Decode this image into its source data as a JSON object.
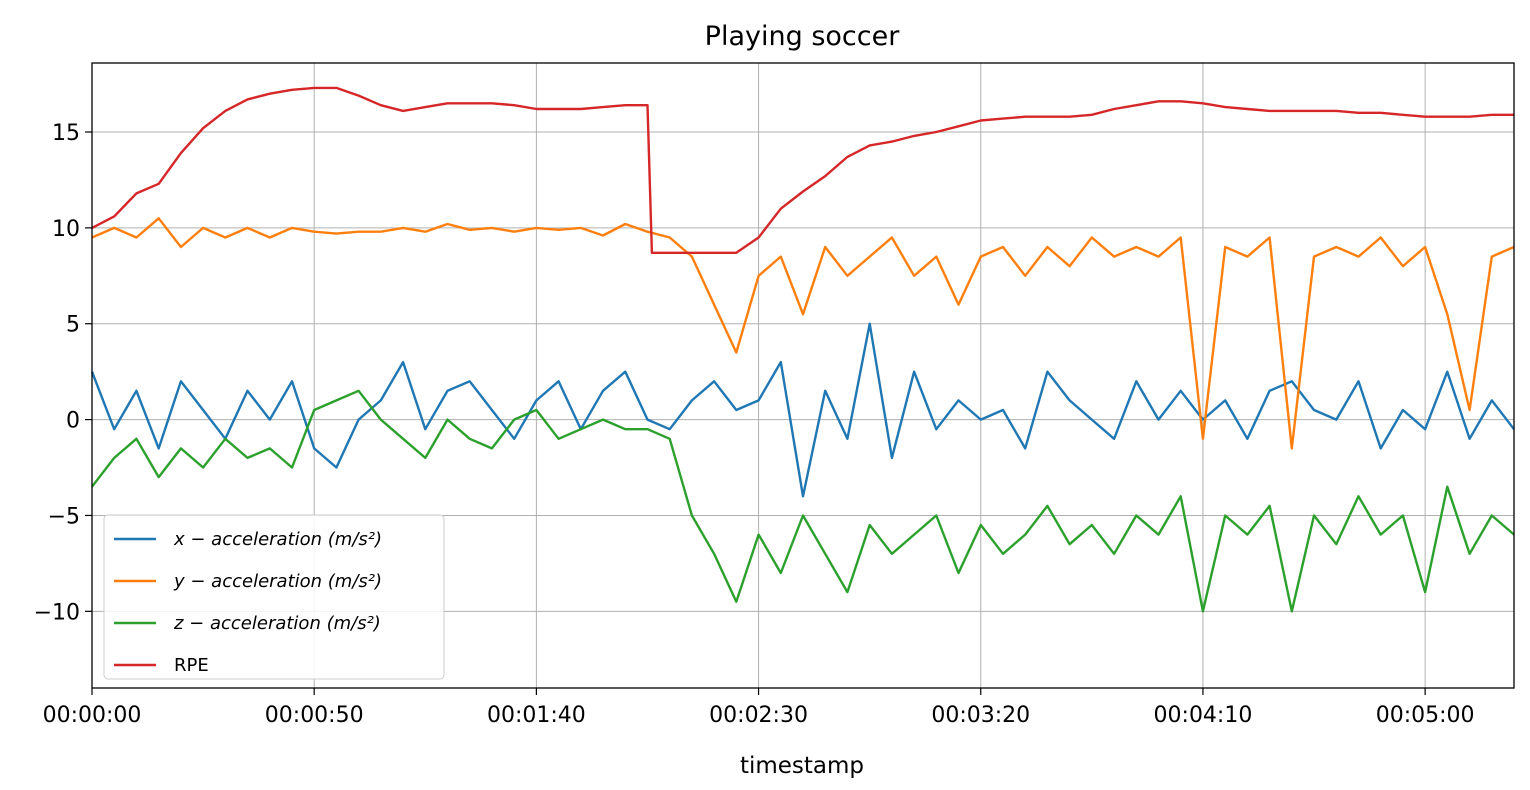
{
  "chart_data": {
    "type": "line",
    "title": "Playing soccer",
    "xlabel": "timestamp",
    "ylabel": "",
    "xlim": [
      0,
      320
    ],
    "ylim": [
      -14,
      18.6
    ],
    "x_ticks": [
      0,
      50,
      100,
      150,
      200,
      250,
      300
    ],
    "x_tick_labels": [
      "00:00:00",
      "00:00:50",
      "00:01:40",
      "00:02:30",
      "00:03:20",
      "00:04:10",
      "00:05:00"
    ],
    "y_ticks": [
      -10,
      -5,
      0,
      5,
      10,
      15
    ],
    "y_tick_labels": [
      "−10",
      "−5",
      "0",
      "5",
      "10",
      "15"
    ],
    "grid": true,
    "legend_position": "lower-left",
    "series": [
      {
        "name": "x − acceleration (m/s²)",
        "color": "#1f77b4",
        "x": [
          0,
          5,
          10,
          15,
          20,
          25,
          30,
          35,
          40,
          45,
          50,
          55,
          60,
          65,
          70,
          75,
          80,
          85,
          90,
          95,
          100,
          105,
          110,
          115,
          120,
          125,
          130,
          135,
          140,
          145,
          150,
          155,
          160,
          165,
          170,
          175,
          180,
          185,
          190,
          195,
          200,
          205,
          210,
          215,
          220,
          225,
          230,
          235,
          240,
          245,
          250,
          255,
          260,
          265,
          270,
          275,
          280,
          285,
          290,
          295,
          300,
          305,
          310,
          315,
          320
        ],
        "values": [
          2.5,
          -0.5,
          1.5,
          -1.5,
          2,
          0.5,
          -1,
          1.5,
          0,
          2,
          -1.5,
          -2.5,
          0,
          1,
          3,
          -0.5,
          1.5,
          2,
          0.5,
          -1,
          1,
          2,
          -0.5,
          1.5,
          2.5,
          0,
          -0.5,
          1,
          2,
          0.5,
          1,
          3,
          -4,
          1.5,
          -1,
          5,
          -2,
          2.5,
          -0.5,
          1,
          0,
          0.5,
          -1.5,
          2.5,
          1,
          0,
          -1,
          2,
          0,
          1.5,
          0,
          1,
          -1,
          1.5,
          2,
          0.5,
          0,
          2,
          -1.5,
          0.5,
          -0.5,
          2.5,
          -1,
          1,
          -0.5
        ]
      },
      {
        "name": "y − acceleration (m/s²)",
        "color": "#ff7f0e",
        "x": [
          0,
          5,
          10,
          15,
          20,
          25,
          30,
          35,
          40,
          45,
          50,
          55,
          60,
          65,
          70,
          75,
          80,
          85,
          90,
          95,
          100,
          105,
          110,
          115,
          120,
          125,
          130,
          135,
          140,
          145,
          150,
          155,
          160,
          165,
          170,
          175,
          180,
          185,
          190,
          195,
          200,
          205,
          210,
          215,
          220,
          225,
          230,
          235,
          240,
          245,
          250,
          255,
          260,
          265,
          270,
          275,
          280,
          285,
          290,
          295,
          300,
          305,
          310,
          315,
          320
        ],
        "values": [
          9.5,
          10,
          9.5,
          10.5,
          9,
          10,
          9.5,
          10,
          9.5,
          10,
          9.8,
          9.7,
          9.8,
          9.8,
          10,
          9.8,
          10.2,
          9.9,
          10,
          9.8,
          10,
          9.9,
          10,
          9.6,
          10.2,
          9.8,
          9.5,
          8.5,
          6,
          3.5,
          7.5,
          8.5,
          5.5,
          9,
          7.5,
          8.5,
          9.5,
          7.5,
          8.5,
          6,
          8.5,
          9,
          7.5,
          9,
          8,
          9.5,
          8.5,
          9,
          8.5,
          9.5,
          -1,
          9,
          8.5,
          9.5,
          -1.5,
          8.5,
          9,
          8.5,
          9.5,
          8,
          9,
          5.5,
          0.5,
          8.5,
          9
        ]
      },
      {
        "name": "z − acceleration (m/s²)",
        "color": "#2ca02c",
        "x": [
          0,
          5,
          10,
          15,
          20,
          25,
          30,
          35,
          40,
          45,
          50,
          55,
          60,
          65,
          70,
          75,
          80,
          85,
          90,
          95,
          100,
          105,
          110,
          115,
          120,
          125,
          130,
          135,
          140,
          145,
          150,
          155,
          160,
          165,
          170,
          175,
          180,
          185,
          190,
          195,
          200,
          205,
          210,
          215,
          220,
          225,
          230,
          235,
          240,
          245,
          250,
          255,
          260,
          265,
          270,
          275,
          280,
          285,
          290,
          295,
          300,
          305,
          310,
          315,
          320
        ],
        "values": [
          -3.5,
          -2,
          -1,
          -3,
          -1.5,
          -2.5,
          -1,
          -2,
          -1.5,
          -2.5,
          0.5,
          1,
          1.5,
          0,
          -1,
          -2,
          0,
          -1,
          -1.5,
          0,
          0.5,
          -1,
          -0.5,
          0,
          -0.5,
          -0.5,
          -1,
          -5,
          -7,
          -9.5,
          -6,
          -8,
          -5,
          -7,
          -9,
          -5.5,
          -7,
          -6,
          -5,
          -8,
          -5.5,
          -7,
          -6,
          -4.5,
          -6.5,
          -5.5,
          -7,
          -5,
          -6,
          -4,
          -10,
          -5,
          -6,
          -4.5,
          -10,
          -5,
          -6.5,
          -4,
          -6,
          -5,
          -9,
          -3.5,
          -7,
          -5,
          -6
        ]
      },
      {
        "name": "RPE",
        "color": "#d62728",
        "x": [
          0,
          5,
          10,
          15,
          20,
          25,
          30,
          35,
          40,
          45,
          50,
          55,
          60,
          65,
          70,
          75,
          80,
          85,
          90,
          95,
          100,
          105,
          110,
          115,
          120,
          125,
          126,
          130,
          135,
          140,
          145,
          150,
          155,
          160,
          165,
          170,
          175,
          180,
          185,
          190,
          195,
          200,
          205,
          210,
          215,
          220,
          225,
          230,
          235,
          240,
          245,
          250,
          255,
          260,
          265,
          270,
          275,
          280,
          285,
          290,
          295,
          300,
          305,
          310,
          315,
          320
        ],
        "values": [
          10,
          10.6,
          11.8,
          12.3,
          13.9,
          15.2,
          16.1,
          16.7,
          17,
          17.2,
          17.3,
          17.3,
          16.9,
          16.4,
          16.1,
          16.3,
          16.5,
          16.5,
          16.5,
          16.4,
          16.2,
          16.2,
          16.2,
          16.3,
          16.4,
          16.4,
          8.7,
          8.7,
          8.7,
          8.7,
          8.7,
          9.5,
          11,
          11.9,
          12.7,
          13.7,
          14.3,
          14.5,
          14.8,
          15,
          15.3,
          15.6,
          15.7,
          15.8,
          15.8,
          15.8,
          15.9,
          16.2,
          16.4,
          16.6,
          16.6,
          16.5,
          16.3,
          16.2,
          16.1,
          16.1,
          16.1,
          16.1,
          16,
          16,
          15.9,
          15.8,
          15.8,
          15.8,
          15.9,
          15.9
        ]
      }
    ]
  }
}
